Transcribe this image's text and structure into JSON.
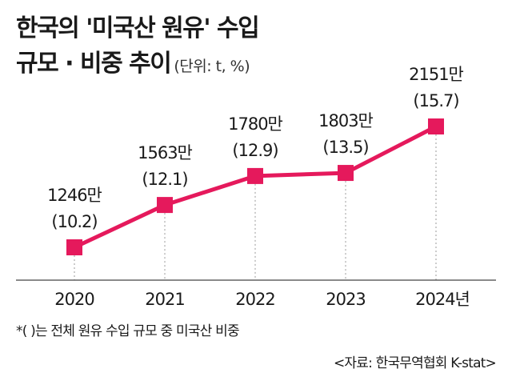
{
  "title": {
    "line1": "한국의 '미국산 원유' 수입",
    "line2": "규모 · 비중 추이",
    "unit": "(단위: t, %)"
  },
  "chart_data": {
    "type": "line",
    "categories": [
      "2020",
      "2021",
      "2022",
      "2023",
      "2024년"
    ],
    "series": [
      {
        "values": [
          1246,
          1563,
          1780,
          1803,
          2151
        ],
        "value_labels": [
          "1246만",
          "1563만",
          "1780만",
          "1803만",
          "2151만"
        ],
        "share_labels": [
          "(10.2)",
          "(12.1)",
          "(12.9)",
          "(13.5)",
          "(15.7)"
        ],
        "shares": [
          10.2,
          12.1,
          12.9,
          13.5,
          15.7
        ]
      }
    ],
    "line_color": "#e5195c",
    "marker": "square",
    "grid": "vertical dashed"
  },
  "footnote": "*(  )는 전체 원유 수입 규모 중 미국산 비중",
  "source": "<자료: 한국무역협회 K-stat>"
}
